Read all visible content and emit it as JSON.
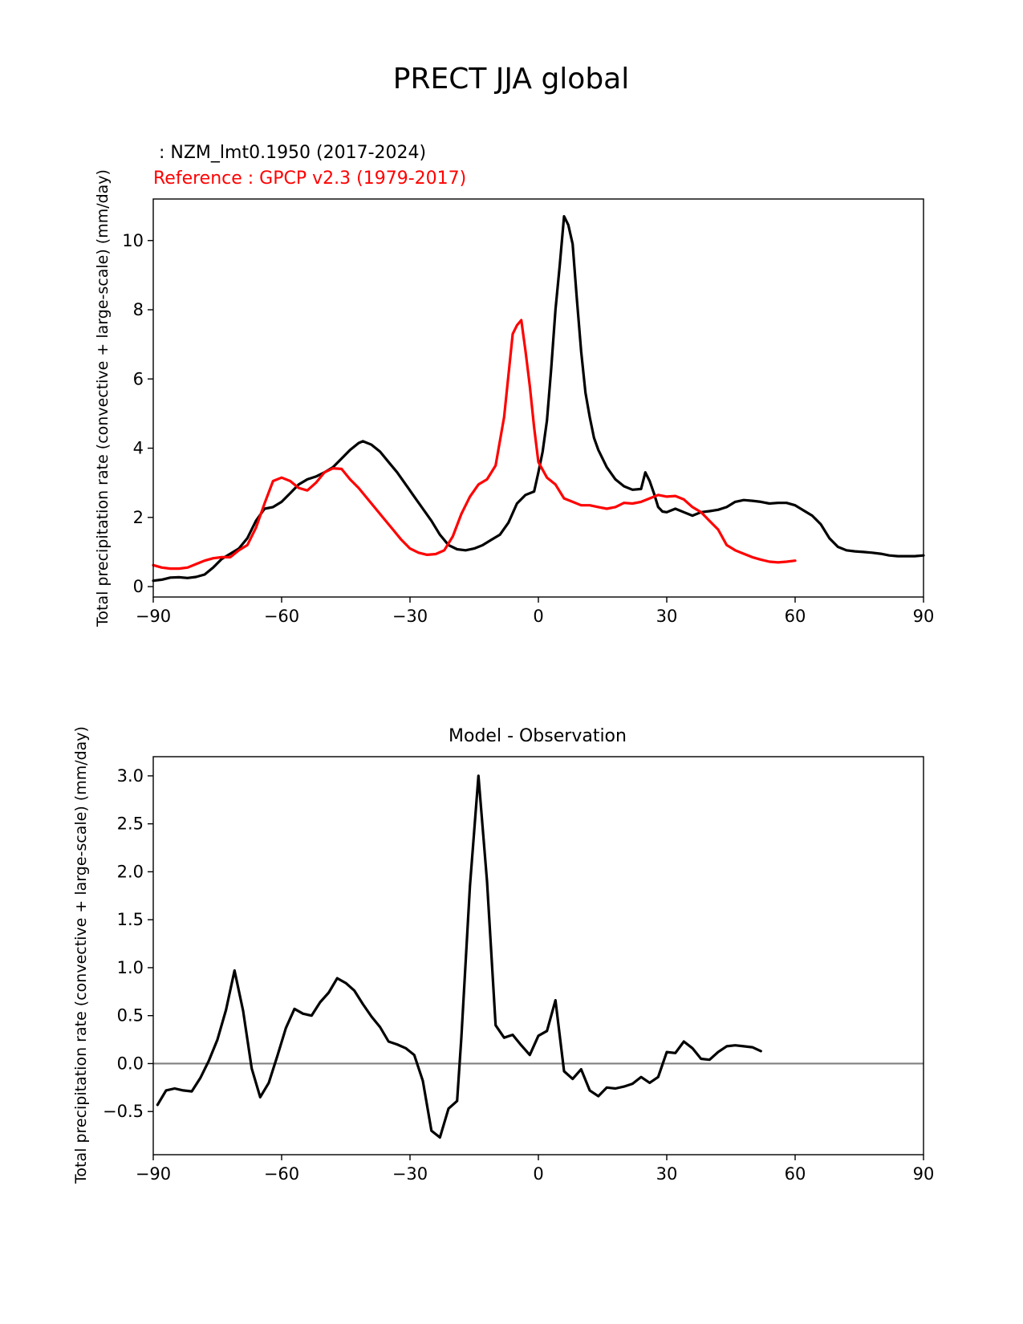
{
  "figure_title": "PRECT JJA global",
  "chart_data": [
    {
      "type": "line",
      "test_label": " : NZM_lmt0.1950 (2017-2024)",
      "ref_label": "Reference : GPCP v2.3 (1979-2017)",
      "ylabel": "Total precipitation rate (convective + large-scale) (mm/day)",
      "xlim": [
        -90,
        90
      ],
      "ylim": [
        -0.3,
        11.2
      ],
      "xticks": [
        -90,
        -60,
        -30,
        0,
        30,
        60,
        90
      ],
      "xtick_labels": [
        "−90",
        "−60",
        "−30",
        "0",
        "30",
        "60",
        "90"
      ],
      "yticks": [
        0,
        2,
        4,
        6,
        8,
        10
      ],
      "ytick_labels": [
        "0",
        "2",
        "4",
        "6",
        "8",
        "10"
      ],
      "series": [
        {
          "name": "NZM_lmt0.1950 (2017-2024)",
          "color": "#000000",
          "points": [
            [
              -90,
              0.17
            ],
            [
              -88,
              0.2
            ],
            [
              -86,
              0.26
            ],
            [
              -84,
              0.27
            ],
            [
              -82,
              0.25
            ],
            [
              -80,
              0.28
            ],
            [
              -78,
              0.35
            ],
            [
              -76,
              0.55
            ],
            [
              -74,
              0.8
            ],
            [
              -72,
              0.95
            ],
            [
              -70,
              1.1
            ],
            [
              -68,
              1.4
            ],
            [
              -66,
              1.9
            ],
            [
              -64,
              2.25
            ],
            [
              -62,
              2.3
            ],
            [
              -60,
              2.45
            ],
            [
              -58,
              2.7
            ],
            [
              -56,
              2.95
            ],
            [
              -54,
              3.1
            ],
            [
              -52,
              3.18
            ],
            [
              -50,
              3.3
            ],
            [
              -48,
              3.45
            ],
            [
              -46,
              3.7
            ],
            [
              -44,
              3.95
            ],
            [
              -42,
              4.15
            ],
            [
              -41,
              4.2
            ],
            [
              -39,
              4.1
            ],
            [
              -37,
              3.9
            ],
            [
              -35,
              3.6
            ],
            [
              -33,
              3.3
            ],
            [
              -31,
              2.95
            ],
            [
              -29,
              2.6
            ],
            [
              -27,
              2.25
            ],
            [
              -25,
              1.9
            ],
            [
              -23,
              1.5
            ],
            [
              -21,
              1.2
            ],
            [
              -19,
              1.08
            ],
            [
              -17,
              1.05
            ],
            [
              -15,
              1.1
            ],
            [
              -13,
              1.2
            ],
            [
              -11,
              1.35
            ],
            [
              -9,
              1.5
            ],
            [
              -7,
              1.85
            ],
            [
              -5,
              2.4
            ],
            [
              -3,
              2.65
            ],
            [
              -1,
              2.75
            ],
            [
              0,
              3.3
            ],
            [
              1,
              3.9
            ],
            [
              2,
              4.8
            ],
            [
              3,
              6.3
            ],
            [
              4,
              8.0
            ],
            [
              5,
              9.3
            ],
            [
              6,
              10.7
            ],
            [
              7,
              10.45
            ],
            [
              8,
              9.9
            ],
            [
              9,
              8.3
            ],
            [
              10,
              6.8
            ],
            [
              11,
              5.6
            ],
            [
              12,
              4.9
            ],
            [
              13,
              4.3
            ],
            [
              14,
              3.95
            ],
            [
              16,
              3.45
            ],
            [
              18,
              3.1
            ],
            [
              20,
              2.9
            ],
            [
              22,
              2.8
            ],
            [
              24,
              2.82
            ],
            [
              25,
              3.3
            ],
            [
              26,
              3.05
            ],
            [
              27,
              2.7
            ],
            [
              28,
              2.3
            ],
            [
              29,
              2.17
            ],
            [
              30,
              2.15
            ],
            [
              32,
              2.25
            ],
            [
              34,
              2.15
            ],
            [
              36,
              2.05
            ],
            [
              38,
              2.15
            ],
            [
              40,
              2.18
            ],
            [
              42,
              2.22
            ],
            [
              44,
              2.3
            ],
            [
              46,
              2.45
            ],
            [
              48,
              2.5
            ],
            [
              50,
              2.48
            ],
            [
              52,
              2.45
            ],
            [
              54,
              2.4
            ],
            [
              56,
              2.42
            ],
            [
              58,
              2.42
            ],
            [
              60,
              2.35
            ],
            [
              62,
              2.2
            ],
            [
              64,
              2.05
            ],
            [
              66,
              1.8
            ],
            [
              68,
              1.4
            ],
            [
              70,
              1.15
            ],
            [
              72,
              1.05
            ],
            [
              74,
              1.02
            ],
            [
              76,
              1.0
            ],
            [
              78,
              0.98
            ],
            [
              80,
              0.95
            ],
            [
              82,
              0.9
            ],
            [
              84,
              0.88
            ],
            [
              86,
              0.88
            ],
            [
              88,
              0.88
            ],
            [
              90,
              0.9
            ]
          ]
        },
        {
          "name": "GPCP v2.3 (1979-2017)",
          "color": "#ff0000",
          "points": [
            [
              -90,
              0.62
            ],
            [
              -88,
              0.55
            ],
            [
              -86,
              0.52
            ],
            [
              -84,
              0.52
            ],
            [
              -82,
              0.55
            ],
            [
              -80,
              0.65
            ],
            [
              -78,
              0.75
            ],
            [
              -76,
              0.82
            ],
            [
              -74,
              0.85
            ],
            [
              -72,
              0.85
            ],
            [
              -70,
              1.05
            ],
            [
              -68,
              1.2
            ],
            [
              -66,
              1.7
            ],
            [
              -64,
              2.4
            ],
            [
              -62,
              3.05
            ],
            [
              -60,
              3.15
            ],
            [
              -58,
              3.05
            ],
            [
              -56,
              2.85
            ],
            [
              -54,
              2.78
            ],
            [
              -52,
              3.0
            ],
            [
              -50,
              3.3
            ],
            [
              -48,
              3.42
            ],
            [
              -46,
              3.4
            ],
            [
              -44,
              3.1
            ],
            [
              -42,
              2.85
            ],
            [
              -40,
              2.55
            ],
            [
              -38,
              2.25
            ],
            [
              -36,
              1.95
            ],
            [
              -34,
              1.65
            ],
            [
              -32,
              1.35
            ],
            [
              -30,
              1.1
            ],
            [
              -28,
              0.98
            ],
            [
              -26,
              0.92
            ],
            [
              -24,
              0.94
            ],
            [
              -22,
              1.05
            ],
            [
              -20,
              1.45
            ],
            [
              -18,
              2.1
            ],
            [
              -16,
              2.6
            ],
            [
              -14,
              2.95
            ],
            [
              -12,
              3.1
            ],
            [
              -10,
              3.5
            ],
            [
              -8,
              4.9
            ],
            [
              -6,
              7.3
            ],
            [
              -5,
              7.55
            ],
            [
              -4,
              7.7
            ],
            [
              -3,
              6.8
            ],
            [
              -2,
              5.8
            ],
            [
              -1,
              4.6
            ],
            [
              0,
              3.6
            ],
            [
              2,
              3.15
            ],
            [
              4,
              2.95
            ],
            [
              6,
              2.55
            ],
            [
              8,
              2.45
            ],
            [
              10,
              2.35
            ],
            [
              12,
              2.35
            ],
            [
              14,
              2.3
            ],
            [
              16,
              2.25
            ],
            [
              18,
              2.3
            ],
            [
              20,
              2.42
            ],
            [
              22,
              2.4
            ],
            [
              24,
              2.45
            ],
            [
              26,
              2.55
            ],
            [
              28,
              2.65
            ],
            [
              30,
              2.6
            ],
            [
              32,
              2.62
            ],
            [
              34,
              2.52
            ],
            [
              36,
              2.3
            ],
            [
              38,
              2.15
            ],
            [
              40,
              1.9
            ],
            [
              42,
              1.65
            ],
            [
              44,
              1.2
            ],
            [
              46,
              1.05
            ],
            [
              48,
              0.95
            ],
            [
              50,
              0.85
            ],
            [
              52,
              0.78
            ],
            [
              54,
              0.72
            ],
            [
              56,
              0.7
            ],
            [
              58,
              0.72
            ],
            [
              60,
              0.75
            ]
          ]
        }
      ]
    },
    {
      "type": "line",
      "title": "Model - Observation",
      "ylabel": "Total precipitation rate (convective + large-scale) (mm/day)",
      "xlim": [
        -90,
        90
      ],
      "ylim": [
        -0.95,
        3.2
      ],
      "xticks": [
        -90,
        -60,
        -30,
        0,
        30,
        60,
        90
      ],
      "xtick_labels": [
        "−90",
        "−60",
        "−30",
        "0",
        "30",
        "60",
        "90"
      ],
      "yticks": [
        -0.5,
        0.0,
        0.5,
        1.0,
        1.5,
        2.0,
        2.5,
        3.0
      ],
      "ytick_labels": [
        "−0.5",
        "0.0",
        "0.5",
        "1.0",
        "1.5",
        "2.0",
        "2.5",
        "3.0"
      ],
      "zero_line": 0,
      "series": [
        {
          "name": "Model - Observation",
          "color": "#000000",
          "points": [
            [
              -89,
              -0.43
            ],
            [
              -87,
              -0.28
            ],
            [
              -85,
              -0.26
            ],
            [
              -83,
              -0.28
            ],
            [
              -81,
              -0.29
            ],
            [
              -79,
              -0.15
            ],
            [
              -77,
              0.03
            ],
            [
              -75,
              0.25
            ],
            [
              -73,
              0.56
            ],
            [
              -71,
              0.97
            ],
            [
              -69,
              0.55
            ],
            [
              -67,
              -0.05
            ],
            [
              -65,
              -0.35
            ],
            [
              -63,
              -0.2
            ],
            [
              -61,
              0.08
            ],
            [
              -59,
              0.37
            ],
            [
              -57,
              0.57
            ],
            [
              -55,
              0.52
            ],
            [
              -53,
              0.5
            ],
            [
              -51,
              0.64
            ],
            [
              -49,
              0.74
            ],
            [
              -47,
              0.89
            ],
            [
              -45,
              0.84
            ],
            [
              -43,
              0.76
            ],
            [
              -41,
              0.62
            ],
            [
              -39,
              0.49
            ],
            [
              -37,
              0.38
            ],
            [
              -35,
              0.23
            ],
            [
              -33,
              0.2
            ],
            [
              -31,
              0.16
            ],
            [
              -29,
              0.09
            ],
            [
              -27,
              -0.18
            ],
            [
              -25,
              -0.7
            ],
            [
              -23,
              -0.77
            ],
            [
              -21,
              -0.47
            ],
            [
              -19,
              -0.39
            ],
            [
              -18,
              0.27
            ],
            [
              -16,
              1.85
            ],
            [
              -14,
              3.0
            ],
            [
              -12,
              1.9
            ],
            [
              -10,
              0.4
            ],
            [
              -8,
              0.27
            ],
            [
              -6,
              0.3
            ],
            [
              -4,
              0.19
            ],
            [
              -2,
              0.09
            ],
            [
              0,
              0.29
            ],
            [
              2,
              0.34
            ],
            [
              4,
              0.66
            ],
            [
              6,
              -0.08
            ],
            [
              8,
              -0.16
            ],
            [
              10,
              -0.06
            ],
            [
              12,
              -0.28
            ],
            [
              14,
              -0.34
            ],
            [
              16,
              -0.25
            ],
            [
              18,
              -0.26
            ],
            [
              20,
              -0.24
            ],
            [
              22,
              -0.21
            ],
            [
              24,
              -0.14
            ],
            [
              26,
              -0.2
            ],
            [
              28,
              -0.14
            ],
            [
              30,
              0.12
            ],
            [
              32,
              0.11
            ],
            [
              34,
              0.23
            ],
            [
              36,
              0.16
            ],
            [
              38,
              0.05
            ],
            [
              40,
              0.04
            ],
            [
              42,
              0.12
            ],
            [
              44,
              0.18
            ],
            [
              46,
              0.19
            ],
            [
              48,
              0.18
            ],
            [
              50,
              0.17
            ],
            [
              52,
              0.13
            ]
          ]
        }
      ]
    }
  ]
}
